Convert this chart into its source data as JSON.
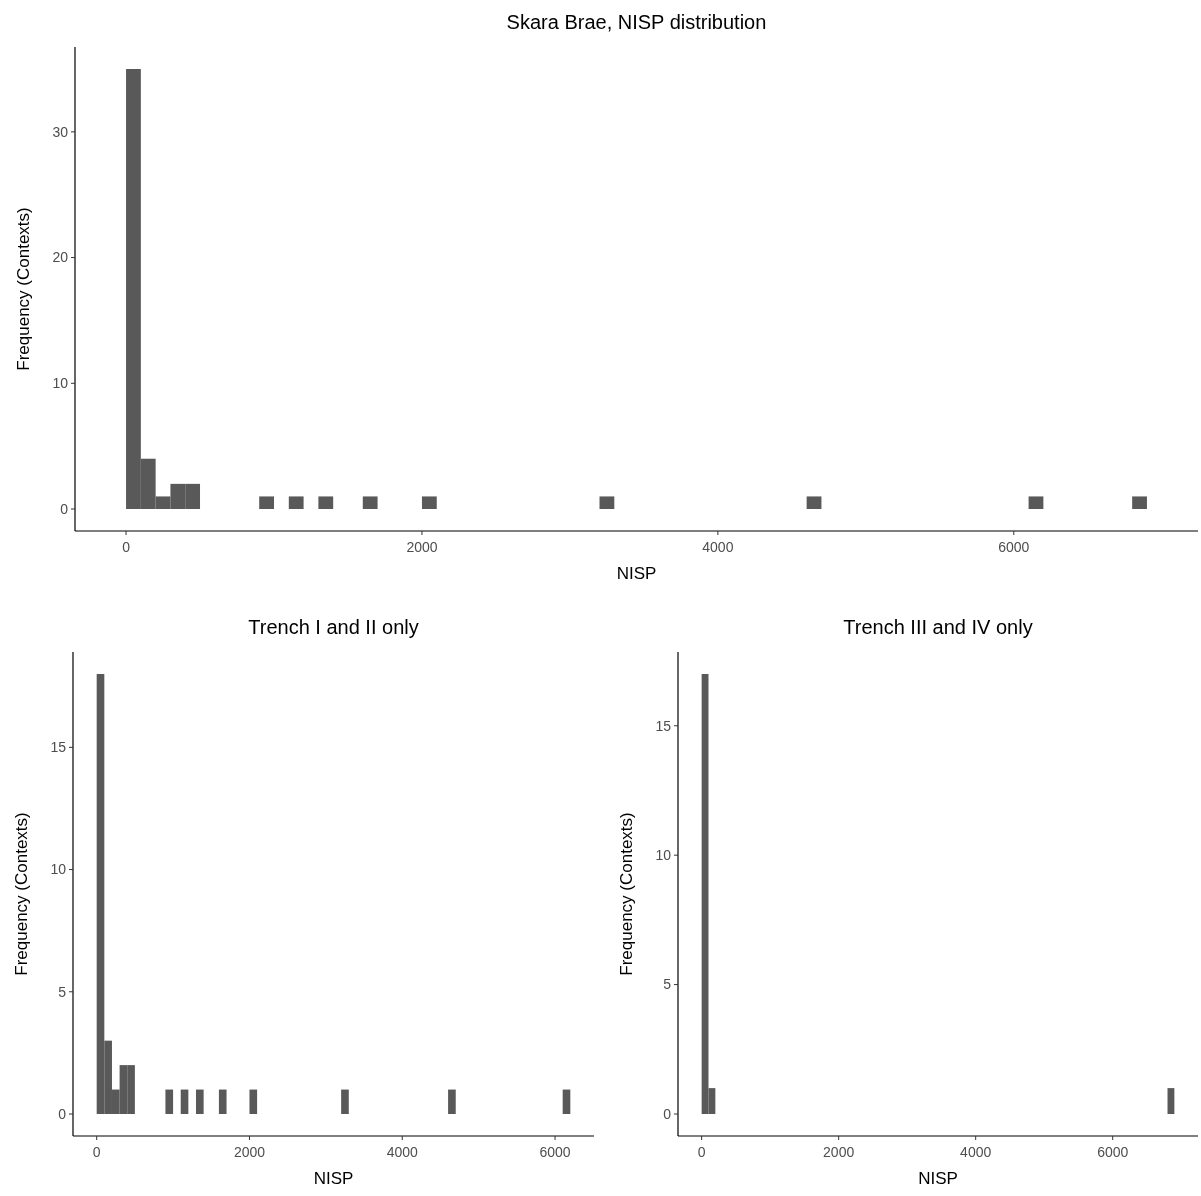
{
  "chart_data": [
    {
      "type": "histogram",
      "title": "Skara Brae, NISP distribution",
      "xlabel": "NISP",
      "ylabel": "Frequency (Contexts)",
      "color": "#595959",
      "grid": false,
      "bins": [
        0,
        100,
        200,
        300,
        400,
        500,
        600,
        700,
        800,
        900,
        1000,
        1100,
        1200,
        1300,
        1400,
        1500,
        1600,
        1700,
        1800,
        1900,
        2000,
        2100,
        2200,
        2300,
        2400,
        2500,
        2600,
        2700,
        2800,
        2900,
        3000,
        3100,
        3200,
        3300,
        3400,
        3500,
        3600,
        3700,
        3800,
        3900,
        4000,
        4100,
        4200,
        4300,
        4400,
        4500,
        4600,
        4700,
        4800,
        4900,
        5000,
        5100,
        5200,
        5300,
        5400,
        5500,
        5600,
        5700,
        5800,
        5900,
        6000,
        6100,
        6200,
        6300,
        6400,
        6500,
        6600,
        6700,
        6800,
        6900
      ],
      "values": [
        35,
        4,
        1,
        2,
        2,
        0,
        0,
        0,
        0,
        1,
        0,
        1,
        0,
        1,
        0,
        0,
        1,
        0,
        0,
        0,
        1,
        0,
        0,
        0,
        0,
        0,
        0,
        0,
        0,
        0,
        0,
        0,
        1,
        0,
        0,
        0,
        0,
        0,
        0,
        0,
        0,
        0,
        0,
        0,
        0,
        0,
        1,
        0,
        0,
        0,
        0,
        0,
        0,
        0,
        0,
        0,
        0,
        0,
        0,
        0,
        0,
        1,
        0,
        0,
        0,
        0,
        0,
        0,
        1
      ],
      "xlim": [
        -345,
        7245
      ],
      "xticks": [
        0,
        2000,
        4000,
        6000
      ],
      "ylim": [
        -1.75,
        36.75
      ],
      "yticks": [
        0,
        10,
        20,
        30
      ]
    },
    {
      "type": "histogram",
      "title": "Trench I and II only",
      "xlabel": "NISP",
      "ylabel": "Frequency (Contexts)",
      "color": "#595959",
      "grid": false,
      "bins": [
        0,
        100,
        200,
        300,
        400,
        500,
        600,
        700,
        800,
        900,
        1000,
        1100,
        1200,
        1300,
        1400,
        1500,
        1600,
        1700,
        1800,
        1900,
        2000,
        2100,
        2200,
        2300,
        2400,
        2500,
        2600,
        2700,
        2800,
        2900,
        3000,
        3100,
        3200,
        3300,
        3400,
        3500,
        3600,
        3700,
        3800,
        3900,
        4000,
        4100,
        4200,
        4300,
        4400,
        4500,
        4600,
        4700,
        4800,
        4900,
        5000,
        5100,
        5200,
        5300,
        5400,
        5500,
        5600,
        5700,
        5800,
        5900,
        6000,
        6100,
        6200
      ],
      "values": [
        18,
        3,
        1,
        2,
        2,
        0,
        0,
        0,
        0,
        1,
        0,
        1,
        0,
        1,
        0,
        0,
        1,
        0,
        0,
        0,
        1,
        0,
        0,
        0,
        0,
        0,
        0,
        0,
        0,
        0,
        0,
        0,
        1,
        0,
        0,
        0,
        0,
        0,
        0,
        0,
        0,
        0,
        0,
        0,
        0,
        0,
        1,
        0,
        0,
        0,
        0,
        0,
        0,
        0,
        0,
        0,
        0,
        0,
        0,
        0,
        0,
        1
      ],
      "xlim": [
        -310,
        6510
      ],
      "xticks": [
        0,
        2000,
        4000,
        6000
      ],
      "ylim": [
        -0.9,
        18.9
      ],
      "yticks": [
        0,
        5,
        10,
        15
      ]
    },
    {
      "type": "histogram",
      "title": "Trench III and IV only",
      "xlabel": "NISP",
      "ylabel": "Frequency (Contexts)",
      "color": "#595959",
      "grid": false,
      "bins": [
        0,
        100,
        200,
        300,
        400,
        500,
        600,
        700,
        800,
        900,
        1000,
        1100,
        1200,
        1300,
        1400,
        1500,
        1600,
        1700,
        1800,
        1900,
        2000,
        2100,
        2200,
        2300,
        2400,
        2500,
        2600,
        2700,
        2800,
        2900,
        3000,
        3100,
        3200,
        3300,
        3400,
        3500,
        3600,
        3700,
        3800,
        3900,
        4000,
        4100,
        4200,
        4300,
        4400,
        4500,
        4600,
        4700,
        4800,
        4900,
        5000,
        5100,
        5200,
        5300,
        5400,
        5500,
        5600,
        5700,
        5800,
        5900,
        6000,
        6100,
        6200,
        6300,
        6400,
        6500,
        6600,
        6700,
        6800,
        6900
      ],
      "values": [
        17,
        1,
        0,
        0,
        0,
        0,
        0,
        0,
        0,
        0,
        0,
        0,
        0,
        0,
        0,
        0,
        0,
        0,
        0,
        0,
        0,
        0,
        0,
        0,
        0,
        0,
        0,
        0,
        0,
        0,
        0,
        0,
        0,
        0,
        0,
        0,
        0,
        0,
        0,
        0,
        0,
        0,
        0,
        0,
        0,
        0,
        0,
        0,
        0,
        0,
        0,
        0,
        0,
        0,
        0,
        0,
        0,
        0,
        0,
        0,
        0,
        0,
        0,
        0,
        0,
        0,
        0,
        0,
        1
      ],
      "xlim": [
        -345,
        7245
      ],
      "xticks": [
        0,
        2000,
        4000,
        6000
      ],
      "ylim": [
        -0.85,
        17.85
      ],
      "yticks": [
        0,
        5,
        10,
        15
      ]
    }
  ]
}
